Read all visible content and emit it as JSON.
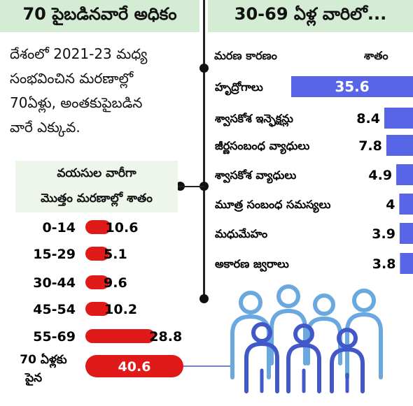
{
  "left_header": "70 పైబడినవారే అధికం",
  "right_header": "30-69 ఏళ్ల వారిలో...",
  "intro": [
    "దేశంలో 2021-23 మధ్య",
    "సంభవించిన మరణాల్లో",
    "70ఏళ్లు, అంతకుపైబడిన",
    "వారే ఎక్కువ."
  ],
  "age_box": [
    "వయసుల వారీగా",
    "మొత్తం మరణాల్లో శాతం"
  ],
  "causes_header": {
    "cause": "మరణ కారణం",
    "percent": "శాతం"
  },
  "colors": {
    "header_bg": "#d4ecd3",
    "age_bar": "#e01919",
    "cause_bar": "#5865e6",
    "people_icon": "#6aa8e0",
    "people_icon_dark": "#4158c8"
  },
  "illustration": "people-group-icon",
  "chart_data": [
    {
      "type": "bar",
      "orientation": "horizontal",
      "categories": [
        "0-14",
        "15-29",
        "30-44",
        "45-54",
        "55-69",
        "70 ఏళ్లకు పైన"
      ],
      "values": [
        10.6,
        5.1,
        9.6,
        10.2,
        28.8,
        40.6
      ],
      "title": "వయసుల వారీగా మొత్తం మరణాల్లో శాతం"
    },
    {
      "type": "bar",
      "orientation": "horizontal",
      "categories": [
        "హృద్రోగాలు",
        "శ్వాసకోశ ఇన్ఫెక్షన్లు",
        "జీర్ణసంబంధ వ్యాధులు",
        "శ్వాసకోశ వ్యాధులు",
        "మూత్ర సంబంధ సమస్యలు",
        "మధుమేహం",
        "అకారణ జ్వరాలు"
      ],
      "values": [
        35.6,
        8.4,
        7.8,
        4.9,
        4,
        3.9,
        3.8
      ],
      "title": "30-69 ఏళ్ల వారిలో...",
      "xlabel": "మరణ కారణం",
      "ylabel": "శాతం"
    }
  ]
}
